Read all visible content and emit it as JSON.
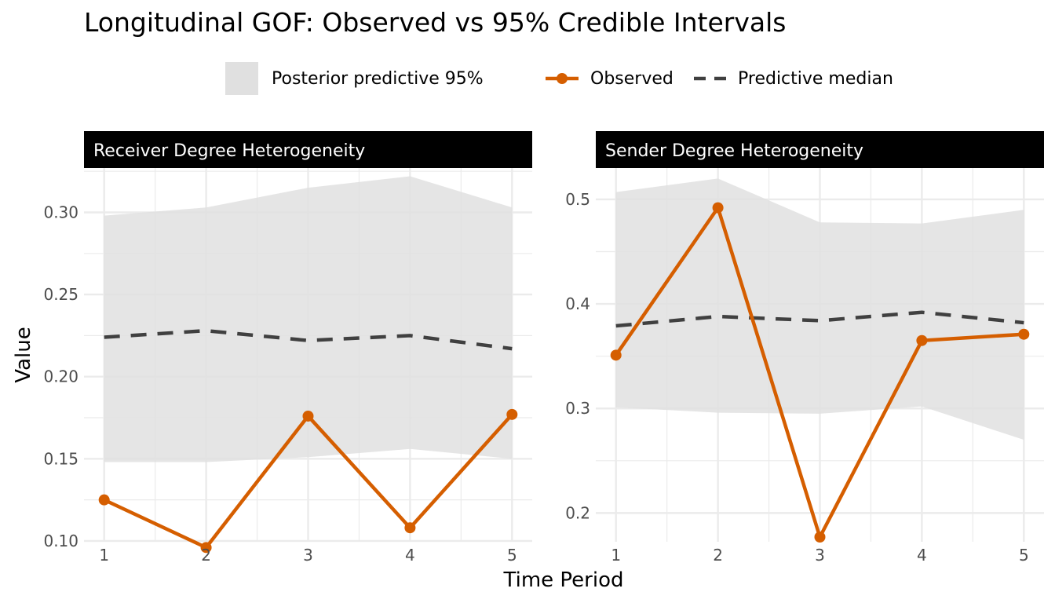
{
  "chart_data": {
    "type": "line",
    "title": "Longitudinal GOF: Observed vs 95% Credible Intervals",
    "xlabel": "Time Period",
    "ylabel": "Value",
    "legend": {
      "placement": "top",
      "items": [
        {
          "key": "band",
          "label": "Posterior predictive 95%"
        },
        {
          "key": "observed",
          "label": "Observed"
        },
        {
          "key": "median",
          "label": "Predictive median"
        }
      ]
    },
    "colors": {
      "observed": "#D55E00",
      "median": "#404040",
      "band": "#E0E0E0",
      "strip": "#000000",
      "strip_text": "#FFFFFF",
      "grid": "#EBEBEB"
    },
    "grid": true,
    "x": [
      1,
      2,
      3,
      4,
      5
    ],
    "panels": [
      {
        "strip": "Receiver Degree Heterogeneity",
        "ylim": [
          0.0995,
          0.327
        ],
        "yticks": [
          0.1,
          0.15,
          0.2,
          0.25,
          0.3
        ],
        "yticklabels": [
          "0.10",
          "0.15",
          "0.20",
          "0.25",
          "0.30"
        ],
        "observed": [
          0.125,
          0.096,
          0.176,
          0.108,
          0.177
        ],
        "median": [
          0.224,
          0.228,
          0.222,
          0.225,
          0.217
        ],
        "lower": [
          0.148,
          0.148,
          0.151,
          0.156,
          0.15
        ],
        "upper": [
          0.298,
          0.303,
          0.315,
          0.322,
          0.303
        ]
      },
      {
        "strip": "Sender Degree Heterogeneity",
        "ylim": [
          0.1725,
          0.53
        ],
        "yticks": [
          0.2,
          0.3,
          0.4,
          0.5
        ],
        "yticklabels": [
          "0.2",
          "0.3",
          "0.4",
          "0.5"
        ],
        "observed": [
          0.351,
          0.492,
          0.177,
          0.365,
          0.371
        ],
        "median": [
          0.379,
          0.388,
          0.384,
          0.392,
          0.382
        ],
        "lower": [
          0.301,
          0.296,
          0.295,
          0.302,
          0.27
        ],
        "upper": [
          0.507,
          0.52,
          0.478,
          0.477,
          0.49
        ]
      }
    ]
  }
}
